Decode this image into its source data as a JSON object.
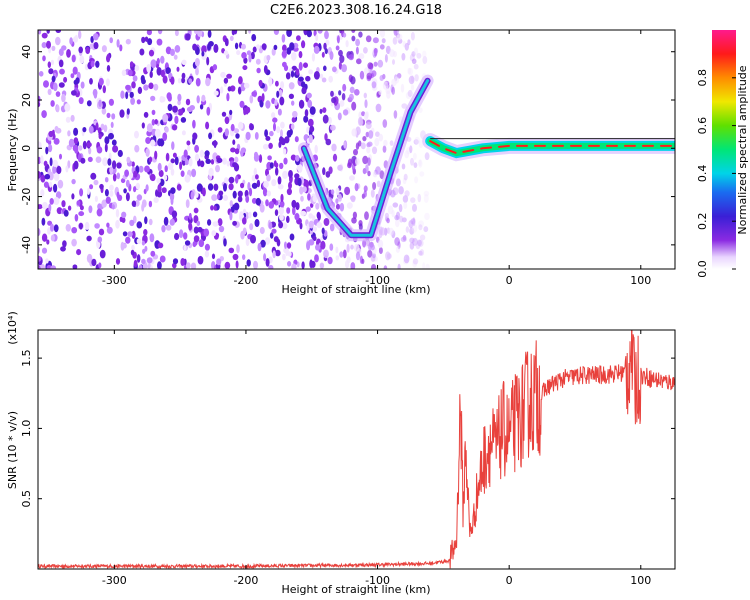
{
  "title": "C2E6.2023.308.16.24.G18",
  "chart_data": [
    {
      "type": "heatmap",
      "xlabel": "Height of straight line (km)",
      "ylabel": "Frequency (Hz)",
      "xlim": [
        -358,
        126
      ],
      "ylim": [
        -50,
        49
      ],
      "xticks": [
        -300,
        -200,
        -100,
        0,
        100
      ],
      "yticks": [
        -40,
        -20,
        0,
        20,
        40
      ],
      "colorbar": {
        "label": "Normalized spectral amplitude",
        "range": [
          0,
          1
        ],
        "ticks": [
          "0.0",
          "0.2",
          "0.4",
          "0.6",
          "0.8"
        ],
        "colormap": "rainbow (white-violet-blue-cyan-green-yellow-red-magenta)"
      },
      "features": [
        {
          "name": "",
          "points": [
            [
              -156,
              0
            ],
            [
              -138,
              -25
            ],
            [
              -120,
              -36
            ],
            [
              -105,
              -36
            ],
            [
              -90,
              -10
            ],
            [
              -75,
              15
            ],
            [
              -62,
              28
            ]
          ]
        },
        {
          "name": "",
          "points": [
            [
              -60,
              3
            ],
            [
              -50,
              0
            ],
            [
              -40,
              -2
            ],
            [
              -20,
              0
            ],
            [
              0,
              1
            ],
            [
              50,
              1
            ],
            [
              126,
              1
            ]
          ]
        }
      ],
      "noise_region_x": [
        -358,
        -62
      ],
      "grid": false
    },
    {
      "type": "line",
      "xlabel": "Height of straight line (km)",
      "ylabel": "SNR (10 * v/v)",
      "y_scale_label": "(x10⁴)",
      "xlim": [
        -358,
        126
      ],
      "ylim": [
        0,
        1.7
      ],
      "xticks": [
        -300,
        -200,
        -100,
        0,
        100
      ],
      "yticks": [
        "0.5",
        "1.0",
        "1.5"
      ],
      "color": "#e8413c",
      "series": [
        {
          "name": "",
          "x": [
            -358,
            -300,
            -200,
            -100,
            -60,
            -45,
            -40,
            -37,
            -35,
            -33,
            -30,
            -27,
            -25,
            -20,
            -15,
            -10,
            -5,
            0,
            5,
            10,
            15,
            20,
            25,
            30,
            40,
            50,
            60,
            70,
            80,
            90,
            93,
            95,
            100,
            110,
            120,
            126
          ],
          "y": [
            0.02,
            0.02,
            0.02,
            0.03,
            0.04,
            0.06,
            0.2,
            1.2,
            0.4,
            0.9,
            0.25,
            0.35,
            0.5,
            0.75,
            0.9,
            0.85,
            1.0,
            0.95,
            1.05,
            1.1,
            1.2,
            1.22,
            1.25,
            1.3,
            1.35,
            1.37,
            1.38,
            1.38,
            1.39,
            1.4,
            1.6,
            1.3,
            1.38,
            1.35,
            1.33,
            1.33
          ]
        }
      ],
      "grid": false
    }
  ]
}
